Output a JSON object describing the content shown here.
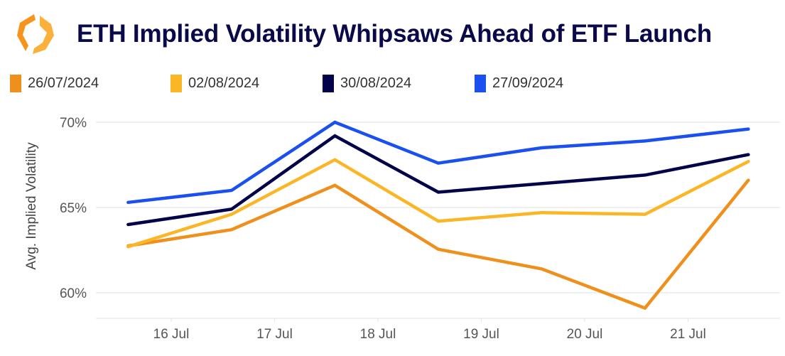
{
  "title": "ETH Implied Volatility Whipsaws Ahead of ETF Launch",
  "logo": {
    "name": "orange-hexagon-logo",
    "colors": [
      "#f7941d",
      "#fbb03b"
    ]
  },
  "chart_data": {
    "type": "line",
    "title": "ETH Implied Volatility Whipsaws Ahead of ETF Launch",
    "xlabel": "",
    "ylabel": "Avg. Implied Volatility",
    "x": [
      "2024-07-15T14:00",
      "2024-07-16T14:00",
      "2024-07-17T14:00",
      "2024-07-18T14:00",
      "2024-07-19T14:00",
      "2024-07-20T14:00",
      "2024-07-21T14:00"
    ],
    "x_ticks": [
      "16 Jul",
      "17 Jul",
      "18 Jul",
      "19 Jul",
      "20 Jul",
      "21 Jul"
    ],
    "y_ticks": [
      "60%",
      "65%",
      "70%"
    ],
    "ylim": [
      58.5,
      70.5
    ],
    "grid": "horizontal",
    "legend": "top",
    "series": [
      {
        "name": "26/07/2024",
        "color": "#f0901c",
        "values": [
          62.75,
          63.7,
          66.3,
          62.55,
          61.4,
          59.1,
          66.6
        ]
      },
      {
        "name": "02/08/2024",
        "color": "#fbb625",
        "values": [
          62.7,
          64.6,
          67.8,
          64.2,
          64.7,
          64.6,
          67.7
        ]
      },
      {
        "name": "30/08/2024",
        "color": "#03034a",
        "values": [
          64.0,
          64.9,
          69.2,
          65.9,
          66.4,
          66.9,
          68.1
        ]
      },
      {
        "name": "27/09/2024",
        "color": "#1a4ff0",
        "values": [
          65.3,
          66.0,
          70.0,
          67.6,
          68.5,
          68.9,
          69.6
        ]
      }
    ]
  }
}
